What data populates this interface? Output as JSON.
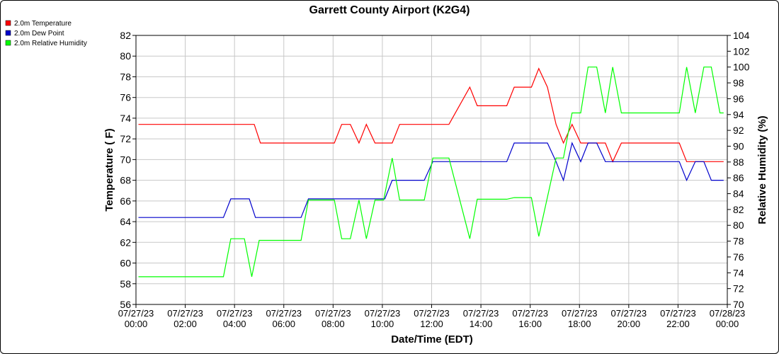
{
  "chart_data": {
    "type": "line",
    "title": "Garrett County Airport (K2G4)",
    "xlabel": "Date/Time (EDT)",
    "ylabel": "Temperature ( F)",
    "y2label": "Relative Humidity (%)",
    "xlim": [
      0,
      24
    ],
    "ylim": [
      56,
      82
    ],
    "y2lim": [
      70,
      104
    ],
    "grid": true,
    "legend_position": "top-left",
    "y_ticks": [
      56,
      58,
      60,
      62,
      64,
      66,
      68,
      70,
      72,
      74,
      76,
      78,
      80,
      82
    ],
    "y2_ticks": [
      70,
      72,
      74,
      76,
      78,
      80,
      82,
      84,
      86,
      88,
      90,
      92,
      94,
      96,
      98,
      100,
      102,
      104
    ],
    "x_ticks": [
      {
        "x": 0,
        "date": "07/27/23",
        "time": "00:00"
      },
      {
        "x": 2,
        "date": "07/27/23",
        "time": "02:00"
      },
      {
        "x": 4,
        "date": "07/27/23",
        "time": "04:00"
      },
      {
        "x": 6,
        "date": "07/27/23",
        "time": "06:00"
      },
      {
        "x": 8,
        "date": "07/27/23",
        "time": "08:00"
      },
      {
        "x": 10,
        "date": "07/27/23",
        "time": "10:00"
      },
      {
        "x": 12,
        "date": "07/27/23",
        "time": "12:00"
      },
      {
        "x": 14,
        "date": "07/27/23",
        "time": "14:00"
      },
      {
        "x": 16,
        "date": "07/27/23",
        "time": "16:00"
      },
      {
        "x": 18,
        "date": "07/27/23",
        "time": "18:00"
      },
      {
        "x": 20,
        "date": "07/27/23",
        "time": "20:00"
      },
      {
        "x": 22,
        "date": "07/27/23",
        "time": "22:00"
      },
      {
        "x": 24,
        "date": "07/28/23",
        "time": "00:00"
      }
    ],
    "series": [
      {
        "name": "2.0m Temperature",
        "color": "#ff0000",
        "axis": "left",
        "points": [
          [
            0.1,
            73.4
          ],
          [
            4.8,
            73.4
          ],
          [
            5.05,
            71.6
          ],
          [
            8.05,
            71.6
          ],
          [
            8.35,
            73.4
          ],
          [
            8.7,
            73.4
          ],
          [
            9.05,
            71.6
          ],
          [
            9.35,
            73.4
          ],
          [
            9.7,
            71.6
          ],
          [
            10.4,
            71.6
          ],
          [
            10.7,
            73.4
          ],
          [
            12.7,
            73.4
          ],
          [
            13.55,
            77.0
          ],
          [
            13.85,
            75.2
          ],
          [
            15.05,
            75.2
          ],
          [
            15.35,
            77.0
          ],
          [
            16.05,
            77.0
          ],
          [
            16.35,
            78.8
          ],
          [
            16.7,
            77.0
          ],
          [
            17.05,
            73.4
          ],
          [
            17.35,
            71.6
          ],
          [
            17.7,
            73.4
          ],
          [
            18.05,
            71.6
          ],
          [
            18.7,
            71.6
          ],
          [
            19.05,
            71.6
          ],
          [
            19.35,
            69.8
          ],
          [
            19.7,
            71.6
          ],
          [
            22.05,
            71.6
          ],
          [
            22.35,
            69.8
          ],
          [
            23.85,
            69.8
          ]
        ]
      },
      {
        "name": "2.0m Dew Point",
        "color": "#0000cc",
        "axis": "left",
        "points": [
          [
            0.1,
            64.4
          ],
          [
            3.55,
            64.4
          ],
          [
            3.85,
            66.2
          ],
          [
            4.6,
            66.2
          ],
          [
            4.85,
            64.4
          ],
          [
            6.7,
            64.4
          ],
          [
            7.0,
            66.2
          ],
          [
            10.1,
            66.2
          ],
          [
            10.4,
            68.0
          ],
          [
            11.7,
            68.0
          ],
          [
            12.05,
            69.8
          ],
          [
            15.05,
            69.8
          ],
          [
            15.35,
            71.6
          ],
          [
            16.7,
            71.6
          ],
          [
            17.05,
            69.8
          ],
          [
            17.35,
            68.0
          ],
          [
            17.7,
            71.6
          ],
          [
            18.05,
            69.8
          ],
          [
            18.35,
            71.6
          ],
          [
            18.7,
            71.6
          ],
          [
            19.05,
            69.8
          ],
          [
            22.05,
            69.8
          ],
          [
            22.35,
            68.0
          ],
          [
            22.7,
            69.8
          ],
          [
            23.05,
            69.8
          ],
          [
            23.35,
            68.0
          ],
          [
            23.85,
            68.0
          ]
        ]
      },
      {
        "name": "2.0m Relative Humidity",
        "color": "#00ff00",
        "axis": "right",
        "points": [
          [
            0.1,
            73.5
          ],
          [
            3.55,
            73.5
          ],
          [
            3.85,
            78.3
          ],
          [
            4.4,
            78.3
          ],
          [
            4.7,
            73.5
          ],
          [
            5.0,
            78.1
          ],
          [
            6.7,
            78.1
          ],
          [
            7.0,
            83.2
          ],
          [
            8.05,
            83.2
          ],
          [
            8.35,
            78.3
          ],
          [
            8.7,
            78.3
          ],
          [
            9.05,
            83.2
          ],
          [
            9.35,
            78.3
          ],
          [
            9.7,
            83.2
          ],
          [
            10.05,
            83.2
          ],
          [
            10.4,
            88.5
          ],
          [
            10.7,
            83.2
          ],
          [
            11.7,
            83.2
          ],
          [
            12.05,
            88.5
          ],
          [
            12.7,
            88.5
          ],
          [
            13.55,
            78.3
          ],
          [
            13.85,
            83.3
          ],
          [
            15.05,
            83.3
          ],
          [
            15.35,
            83.5
          ],
          [
            16.05,
            83.5
          ],
          [
            16.35,
            78.6
          ],
          [
            17.05,
            88.5
          ],
          [
            17.35,
            88.5
          ],
          [
            17.7,
            94.2
          ],
          [
            18.05,
            94.2
          ],
          [
            18.35,
            100.0
          ],
          [
            18.7,
            100.0
          ],
          [
            19.05,
            94.2
          ],
          [
            19.35,
            100.0
          ],
          [
            19.7,
            94.2
          ],
          [
            22.05,
            94.2
          ],
          [
            22.35,
            100.0
          ],
          [
            22.7,
            94.2
          ],
          [
            23.05,
            100.0
          ],
          [
            23.35,
            100.0
          ],
          [
            23.7,
            94.2
          ],
          [
            23.85,
            94.2
          ]
        ]
      }
    ]
  }
}
